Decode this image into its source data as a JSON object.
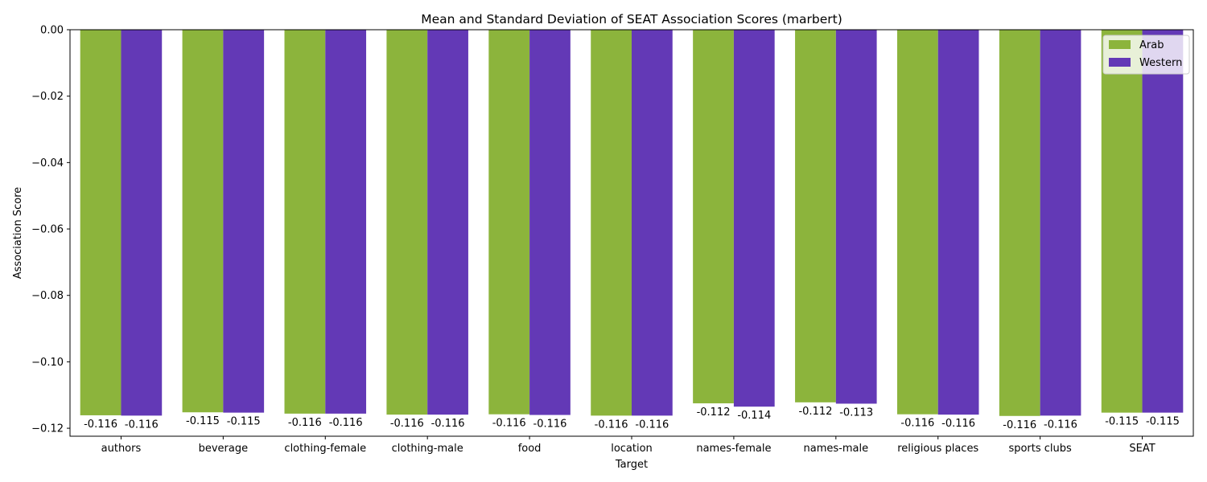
{
  "chart_data": {
    "type": "bar",
    "title": "Mean and Standard Deviation of SEAT Association Scores (marbert)",
    "xlabel": "Target",
    "ylabel": "Association Score",
    "categories": [
      "authors",
      "beverage",
      "clothing-female",
      "clothing-male",
      "food",
      "location",
      "names-female",
      "names-male",
      "religious places",
      "sports clubs",
      "SEAT"
    ],
    "series": [
      {
        "name": "Arab",
        "color": "#8cb43c",
        "values": [
          -0.1161,
          -0.1152,
          -0.1156,
          -0.1159,
          -0.1158,
          -0.1162,
          -0.1125,
          -0.1122,
          -0.1158,
          -0.1163,
          -0.1153
        ],
        "labels": [
          "-0.116",
          "-0.115",
          "-0.116",
          "-0.116",
          "-0.116",
          "-0.116",
          "-0.112",
          "-0.112",
          "-0.116",
          "-0.116",
          "-0.115"
        ]
      },
      {
        "name": "Western",
        "color": "#6339b6",
        "values": [
          -0.1162,
          -0.1153,
          -0.1156,
          -0.1159,
          -0.116,
          -0.1162,
          -0.1135,
          -0.1126,
          -0.1159,
          -0.1162,
          -0.1153
        ],
        "labels": [
          "-0.116",
          "-0.115",
          "-0.116",
          "-0.116",
          "-0.116",
          "-0.116",
          "-0.114",
          "-0.113",
          "-0.116",
          "-0.116",
          "-0.115"
        ]
      }
    ],
    "yticks": [
      0.0,
      -0.02,
      -0.04,
      -0.06,
      -0.08,
      -0.1,
      -0.12
    ],
    "ytick_labels": [
      "0.00",
      "−0.02",
      "−0.04",
      "−0.06",
      "−0.08",
      "−0.10",
      "−0.12"
    ],
    "ylim": [
      -0.1224,
      0.0
    ],
    "grid": false,
    "legend": "top-right"
  }
}
